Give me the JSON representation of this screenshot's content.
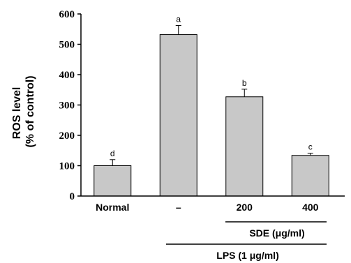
{
  "chart_data": {
    "type": "bar",
    "categories": [
      "Normal",
      "–",
      "200",
      "400"
    ],
    "values": [
      100,
      532,
      327,
      134
    ],
    "errors": [
      20,
      30,
      25,
      7
    ],
    "significance": [
      "d",
      "a",
      "b",
      "c"
    ],
    "ylabel": [
      "ROS level",
      "(% of control)"
    ],
    "yticks": [
      "0",
      "100",
      "200",
      "300",
      "400",
      "500",
      "600"
    ],
    "ylim": [
      0,
      600
    ],
    "bar_color": "#c8c8c8",
    "groups": {
      "sde": "SDE (μg/ml)",
      "lps": "LPS (1 μg/ml)"
    }
  }
}
